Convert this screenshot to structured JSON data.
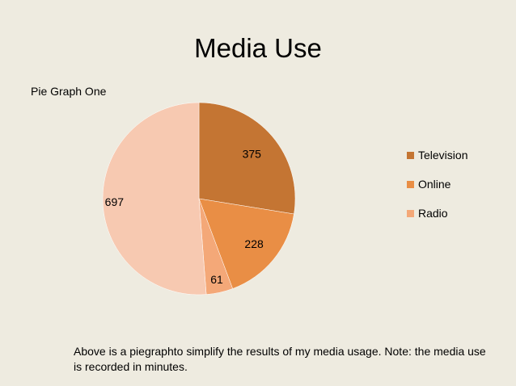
{
  "slide": {
    "title": "Media Use",
    "subtitle": "Pie Graph One",
    "caption": "Above is a piegraphto simplify the results of my media usage. Note: the media use is recorded in minutes."
  },
  "chart_data": {
    "type": "pie",
    "legend_position": "right",
    "slices": [
      {
        "label": "Television",
        "value": 375,
        "color": "#c47533"
      },
      {
        "label": "Online",
        "value": 228,
        "color": "#e98e45"
      },
      {
        "label": "Radio",
        "value": 61,
        "color": "#f4a878"
      },
      {
        "label": "",
        "value": 697,
        "color": "#f7c9b1"
      }
    ],
    "data_labels": [
      "375",
      "228",
      "61",
      "697"
    ]
  },
  "legend": {
    "items": [
      {
        "label": "Television",
        "color": "#c47533"
      },
      {
        "label": "Online",
        "color": "#e98e45"
      },
      {
        "label": "Radio",
        "color": "#f4a878"
      }
    ]
  }
}
